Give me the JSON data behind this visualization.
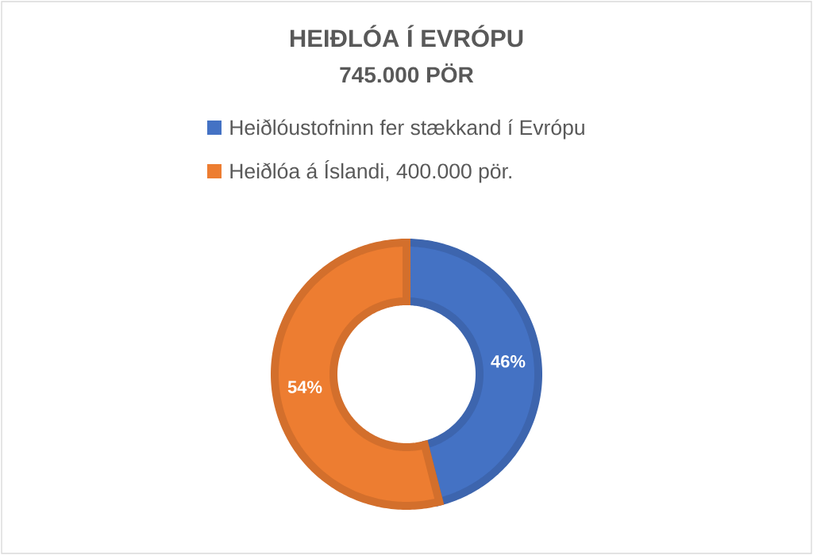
{
  "chart_data": {
    "type": "donut",
    "title": "HEIÐLÓA Í EVRÓPU",
    "subtitle": "745.000 PÖR",
    "categories": [
      "Heiðlóustofninn fer stækkand í Evrópu",
      "Heiðlóa á Íslandi, 400.000 pör."
    ],
    "values": [
      46,
      54
    ],
    "colors": [
      "#4472c4",
      "#ed7d31"
    ],
    "value_labels": [
      "46%",
      "54%"
    ],
    "legend": "top"
  }
}
